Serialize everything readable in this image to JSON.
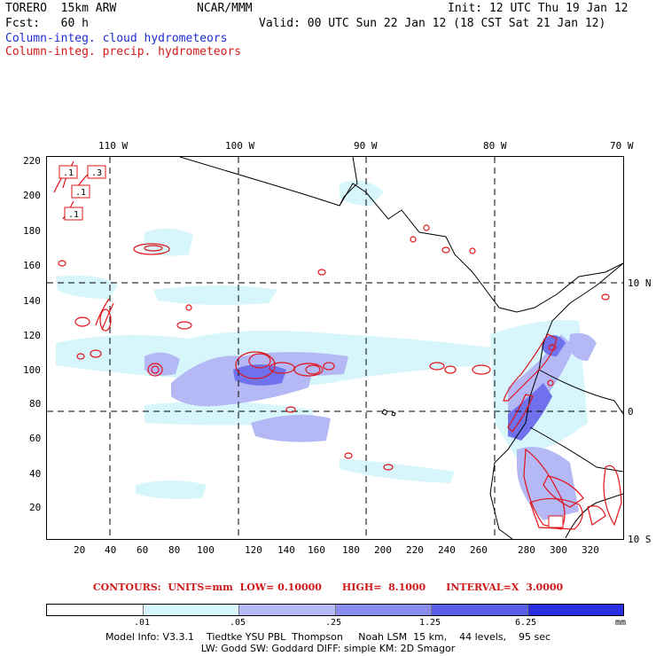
{
  "header": {
    "model": "TORERO  15km ARW",
    "org": "NCAR/MMM",
    "init": "Init: 12 UTC Thu 19 Jan 12",
    "fcst": "Fcst:   60 h",
    "valid": "Valid: 00 UTC Sun 22 Jan 12 (18 CST Sat 21 Jan 12)",
    "field_cloud": "Column-integ. cloud hydrometeors",
    "field_precip": "Column-integ. precip. hydrometeors"
  },
  "colors": {
    "cloud_text": "#1f2fd0",
    "precip_text": "#d01a1a",
    "shade_1": "#d6f6fb",
    "shade_2": "#b4b8f4",
    "shade_3": "#8a8cf0",
    "shade_4": "#5a5de6",
    "shade_5": "#2a2ee0",
    "contour": "#e0141a"
  },
  "top_lon_labels": [
    "110 W",
    "100 W",
    "90 W",
    "80 W",
    "70 W"
  ],
  "right_lat_labels": [
    "10 N",
    "0",
    "10 S"
  ],
  "grid_y_labels": [
    "220",
    "200",
    "180",
    "160",
    "140",
    "120",
    "100",
    "80",
    "60",
    "40",
    "20"
  ],
  "grid_x_labels": [
    "20",
    "40",
    "60",
    "80",
    "100",
    "120",
    "140",
    "160",
    "180",
    "200",
    "220",
    "240",
    "260",
    "280",
    "300",
    "320"
  ],
  "contour_labels": [
    ".1",
    ".3",
    ".1",
    ".1"
  ],
  "contour_info": "CONTOURS:  UNITS=mm  LOW= 0.10000      HIGH=  8.1000      INTERVAL=X  3.0000",
  "colorbar": {
    "labels": [
      ".01",
      ".05",
      ".25",
      "1.25",
      "6.25"
    ],
    "unit": "mm"
  },
  "footer": {
    "line1": "Model Info: V3.3.1    Tiedtke YSU PBL  Thompson     Noah LSM  15 km,    44 levels,    95 sec",
    "line2": "LW: Godd SW: Goddard DIFF: simple KM: 2D Smagor"
  }
}
